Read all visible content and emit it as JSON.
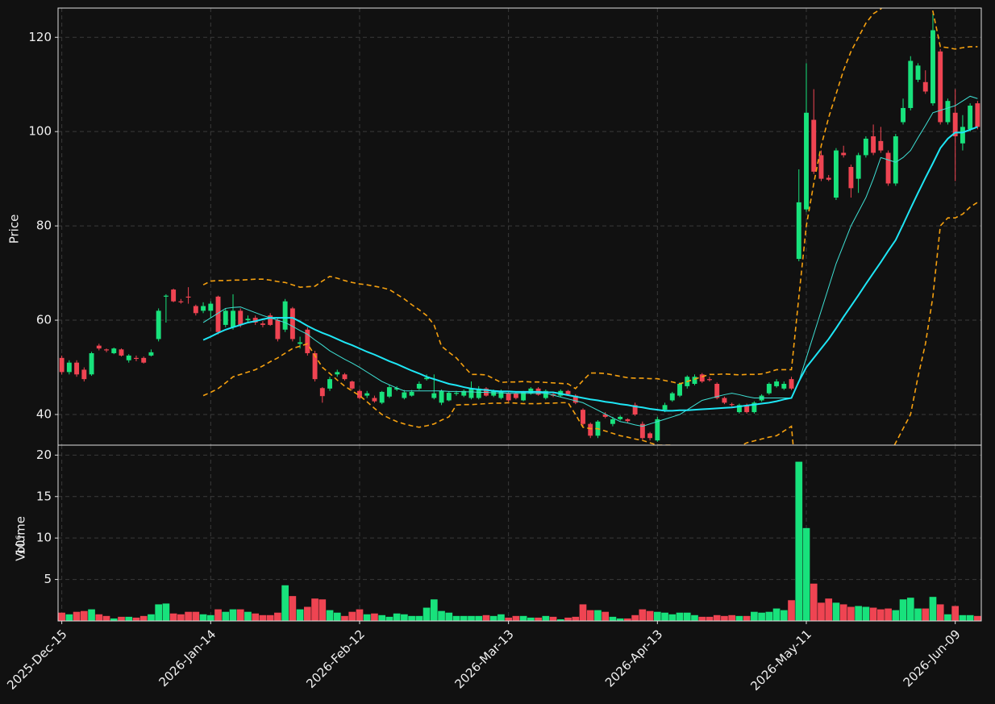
{
  "chart_data": {
    "type": "candlestick",
    "ylabel": "Price",
    "volume_ylabel": "Volume",
    "volume_unit": "10⁶",
    "up_color": "#18e27c",
    "down_color": "#ef4452",
    "grid": true,
    "ylim": [
      33.5,
      126.2
    ],
    "yticks": [
      40,
      60,
      80,
      100,
      120
    ],
    "volume_ylim": [
      0,
      21.2
    ],
    "volume_yticks": [
      5,
      10,
      15,
      20
    ],
    "categories": [
      "2025-Dec-15",
      null,
      null,
      null,
      null,
      null,
      null,
      null,
      null,
      null,
      null,
      null,
      null,
      null,
      null,
      null,
      null,
      null,
      null,
      null,
      "2026-Jan-14",
      null,
      null,
      null,
      null,
      null,
      null,
      null,
      null,
      null,
      null,
      null,
      null,
      null,
      null,
      null,
      null,
      null,
      null,
      null,
      "2026-Feb-12",
      null,
      null,
      null,
      null,
      null,
      null,
      null,
      null,
      null,
      null,
      null,
      null,
      null,
      null,
      null,
      null,
      null,
      null,
      null,
      "2026-Mar-13",
      null,
      null,
      null,
      null,
      null,
      null,
      null,
      null,
      null,
      null,
      null,
      null,
      null,
      null,
      null,
      null,
      null,
      null,
      null,
      "2026-Apr-13",
      null,
      null,
      null,
      null,
      null,
      null,
      null,
      null,
      null,
      null,
      null,
      null,
      null,
      null,
      null,
      null,
      null,
      null,
      null,
      "2026-May-11",
      null,
      null,
      null,
      null,
      null,
      null,
      null,
      null,
      null,
      null,
      null,
      null,
      null,
      null,
      null,
      null,
      null,
      null,
      null,
      "2026-Jun-09",
      null,
      null,
      null
    ],
    "open": [
      52,
      49,
      51,
      49.5,
      48.5,
      54.6,
      53.8,
      53,
      53.8,
      51.5,
      52,
      52,
      52.5,
      56,
      65,
      66.5,
      64,
      65,
      63,
      62,
      62,
      65,
      59,
      58.5,
      62,
      60,
      60.5,
      59.3,
      61,
      60,
      58,
      62.5,
      55,
      58,
      53,
      45.6,
      45.5,
      48.5,
      48.5,
      47,
      45,
      44,
      43.5,
      42.5,
      43.8,
      45.3,
      43.5,
      44,
      45.5,
      47.5,
      43.5,
      42.5,
      43,
      44.4,
      44,
      43.5,
      43.5,
      45.5,
      44,
      43.5,
      44.5,
      44.5,
      43,
      44.5,
      45.5,
      43.5,
      44.3,
      44,
      45,
      44,
      41,
      38,
      35.5,
      40,
      38,
      39,
      39,
      42,
      38,
      36,
      34.5,
      41,
      43,
      44,
      46,
      46.5,
      48.5,
      47.5,
      46.5,
      43.5,
      42.2,
      40.5,
      42,
      40.5,
      43,
      44.5,
      46,
      45.5,
      47.5,
      73,
      83.5,
      102.5,
      95,
      90.2,
      86,
      95.5,
      92.5,
      90,
      95,
      99,
      98,
      95.5,
      89,
      102,
      105,
      111,
      110.5,
      106,
      117,
      102,
      104,
      97.5,
      100.5,
      106
    ],
    "high": [
      52.5,
      51.5,
      51.5,
      50,
      53.3,
      55,
      54,
      54.2,
      54,
      52.8,
      52.5,
      52.3,
      53.8,
      62.5,
      65.5,
      66.7,
      64.5,
      67,
      63.3,
      63.8,
      64,
      65.2,
      62.5,
      65.5,
      62.5,
      61,
      61,
      59.8,
      61.5,
      60.5,
      64.5,
      62.8,
      56.5,
      58.5,
      53.5,
      45.8,
      48,
      49.5,
      48.8,
      47.2,
      45.3,
      45,
      44,
      45,
      46.3,
      46,
      45.2,
      45.2,
      47,
      48.5,
      48.5,
      45.3,
      44.9,
      45,
      45.3,
      47,
      46,
      45.8,
      45.3,
      45.3,
      44.8,
      44.8,
      45,
      45.8,
      45.8,
      45.3,
      44.6,
      45.3,
      45.2,
      44.3,
      41.3,
      38.3,
      38.8,
      40.5,
      39.5,
      39.8,
      39.2,
      42.5,
      38.5,
      36.3,
      39.5,
      42.5,
      44.8,
      46.8,
      48.3,
      48.5,
      48.8,
      48,
      46.8,
      43.8,
      42.5,
      42.3,
      42.3,
      42.8,
      44.3,
      46.8,
      47.5,
      47,
      48,
      92,
      114.5,
      109,
      96,
      90.8,
      96.5,
      97,
      93,
      95.5,
      99,
      101.5,
      101,
      96,
      99.5,
      107,
      116,
      114.5,
      113,
      125,
      117.5,
      107,
      109,
      103.5,
      106,
      106.5
    ],
    "low": [
      48.5,
      48.5,
      48,
      47,
      48.2,
      53.6,
      53.2,
      52.8,
      52.3,
      51,
      51.3,
      50.8,
      52.3,
      55.5,
      59.5,
      63.8,
      63.5,
      63.5,
      61,
      61.5,
      60.5,
      57,
      58.5,
      58,
      58.5,
      59.5,
      59,
      58.5,
      58.8,
      55.5,
      57.5,
      55.5,
      54,
      52.5,
      47,
      42.5,
      45,
      48,
      47.2,
      45.2,
      43.2,
      43.5,
      42.5,
      42.2,
      43.5,
      45,
      43.2,
      43.8,
      45.2,
      47.2,
      43.2,
      42,
      42.8,
      44,
      43.7,
      43.2,
      43.2,
      43.8,
      43.7,
      43.2,
      42.7,
      43.2,
      42.8,
      44.2,
      44,
      43.2,
      43.7,
      43.7,
      44,
      42.2,
      37.5,
      35,
      35,
      39.2,
      37.5,
      38.7,
      38.3,
      39.7,
      34.7,
      34.5,
      34.2,
      40.5,
      42.7,
      43.7,
      45.5,
      46.2,
      46.7,
      47,
      43.2,
      42.2,
      41.7,
      40.2,
      40.2,
      40.2,
      42.7,
      44.2,
      45.7,
      45.2,
      45.2,
      72.5,
      83,
      91,
      89.5,
      89.5,
      85.5,
      94.5,
      86,
      87,
      94.5,
      95,
      95.5,
      88.5,
      88.5,
      101.5,
      104.5,
      110.5,
      108,
      105.5,
      101.5,
      101.5,
      89.5,
      96,
      100,
      100.5
    ],
    "close": [
      49,
      51,
      48.5,
      47.5,
      53,
      54,
      53.6,
      54,
      52.5,
      52.5,
      51.8,
      51,
      53.2,
      62,
      65.2,
      64,
      63.8,
      64.8,
      61.5,
      63,
      63.5,
      57.5,
      62,
      62,
      59,
      60.3,
      59.5,
      59,
      59,
      56,
      64,
      56,
      55.3,
      53,
      47.5,
      43.9,
      47.5,
      49,
      47.5,
      45.5,
      43.5,
      44.5,
      42.8,
      44.8,
      45.8,
      45.6,
      44.7,
      44.8,
      46.5,
      47.8,
      44.5,
      45,
      44.6,
      44.6,
      45,
      45.5,
      45.5,
      44,
      45,
      45,
      43,
      43.5,
      44.7,
      45.5,
      44.2,
      45,
      44,
      45,
      44.3,
      42.5,
      38,
      35.5,
      38.5,
      39.5,
      39,
      39.5,
      38.6,
      40,
      35,
      35,
      39,
      42,
      44.5,
      46.5,
      48,
      48,
      47,
      47.3,
      43.5,
      42.5,
      42,
      42,
      40.5,
      42.5,
      44,
      46.5,
      47,
      46.5,
      45.5,
      85,
      104,
      91.5,
      90,
      89.8,
      96,
      95,
      88,
      95,
      98.5,
      95.5,
      96,
      89,
      99,
      105,
      115,
      114,
      108.5,
      121.5,
      102,
      106.5,
      99,
      101,
      105.5,
      101
    ],
    "volume": [
      1.0,
      0.8,
      1.1,
      1.2,
      1.4,
      0.8,
      0.6,
      0.3,
      0.5,
      0.5,
      0.4,
      0.6,
      0.8,
      2.0,
      2.1,
      0.9,
      0.8,
      1.1,
      1.1,
      0.8,
      0.7,
      1.4,
      1.1,
      1.4,
      1.4,
      1.1,
      0.9,
      0.7,
      0.7,
      1.0,
      4.3,
      3.0,
      1.4,
      1.7,
      2.7,
      2.6,
      1.3,
      1.0,
      0.6,
      1.1,
      1.4,
      0.8,
      0.9,
      0.7,
      0.5,
      0.9,
      0.8,
      0.6,
      0.6,
      1.6,
      2.6,
      1.2,
      1.0,
      0.6,
      0.6,
      0.6,
      0.6,
      0.7,
      0.6,
      0.8,
      0.4,
      0.6,
      0.6,
      0.4,
      0.4,
      0.6,
      0.5,
      0.2,
      0.4,
      0.5,
      2.0,
      1.3,
      1.3,
      1.1,
      0.5,
      0.3,
      0.3,
      0.7,
      1.4,
      1.2,
      1.1,
      1.0,
      0.8,
      1.0,
      1.0,
      0.7,
      0.5,
      0.5,
      0.7,
      0.6,
      0.7,
      0.6,
      0.6,
      1.1,
      1.0,
      1.1,
      1.5,
      1.3,
      2.5,
      19.2,
      11.2,
      4.5,
      2.2,
      2.7,
      2.2,
      2.0,
      1.7,
      1.8,
      1.7,
      1.6,
      1.4,
      1.5,
      1.3,
      2.6,
      2.8,
      1.5,
      1.5,
      2.9,
      2.0,
      0.8,
      1.8,
      0.7,
      0.7,
      0.6
    ],
    "overlays": [
      {
        "color": "#3ee0d4",
        "style": "thin",
        "values": [
          null,
          null,
          null,
          null,
          null,
          null,
          null,
          null,
          null,
          null,
          null,
          null,
          null,
          null,
          null,
          null,
          null,
          null,
          null,
          59.5,
          60.5,
          61.5,
          62.5,
          62.7,
          62.8,
          62.2,
          61.6,
          61,
          60.5,
          60,
          59.5,
          58.7,
          57.8,
          57,
          55.8,
          54.7,
          53.5,
          52.6,
          51.7,
          50.9,
          50,
          49,
          48,
          47,
          46.3,
          45.6,
          45,
          45,
          45,
          45,
          45,
          45,
          44.9,
          44.9,
          44.8,
          44.8,
          44.7,
          44.7,
          44.6,
          44.6,
          44.5,
          44.5,
          44.5,
          44.5,
          44.5,
          44.5,
          44.1,
          43.7,
          43.3,
          42.9,
          42.5,
          41.7,
          40.9,
          40.1,
          39.3,
          38.5,
          38.2,
          37.8,
          37.5,
          38,
          38.5,
          39,
          39.5,
          40,
          41,
          42,
          43,
          43.4,
          43.8,
          44.2,
          44.5,
          44.2,
          43.8,
          43.5,
          43.5,
          43.5,
          43.5,
          43.5,
          43.5,
          47,
          52,
          57,
          62,
          67,
          72,
          76,
          80,
          83,
          86,
          90,
          94.5,
          94,
          93.5,
          94.5,
          96,
          98.7,
          101.3,
          104,
          104.5,
          105,
          105.5,
          106.5,
          107.5,
          107
        ]
      },
      {
        "color": "#1ee6f5",
        "style": "bold",
        "values": [
          null,
          null,
          null,
          null,
          null,
          null,
          null,
          null,
          null,
          null,
          null,
          null,
          null,
          null,
          null,
          null,
          null,
          null,
          null,
          55.8,
          56.5,
          57.3,
          58,
          58.5,
          59,
          59.5,
          59.8,
          60.2,
          60.5,
          60.5,
          60.5,
          60.5,
          59.7,
          58.8,
          58,
          57.3,
          56.7,
          56,
          55.3,
          54.7,
          54,
          53.3,
          52.7,
          52,
          51.3,
          50.7,
          50,
          49.3,
          48.7,
          48,
          47.5,
          47,
          46.5,
          46.2,
          45.8,
          45.5,
          45.3,
          45.2,
          45,
          44.9,
          44.9,
          44.8,
          44.8,
          44.8,
          44.8,
          44.7,
          44.7,
          44.4,
          44.1,
          43.8,
          43.5,
          43.2,
          43,
          42.7,
          42.5,
          42.2,
          42,
          41.7,
          41.5,
          41.2,
          41,
          40.8,
          40.8,
          40.9,
          40.9,
          41,
          41.1,
          41.2,
          41.3,
          41.4,
          41.5,
          41.7,
          41.9,
          42.1,
          42.3,
          42.5,
          42.8,
          43.2,
          43.5,
          47,
          50,
          52,
          54,
          56,
          58.3,
          60.7,
          63,
          65.3,
          67.7,
          70,
          72.3,
          74.7,
          77,
          80.3,
          83.7,
          87,
          90.2,
          93.3,
          96.5,
          98.5,
          99.8,
          99.8,
          100.4,
          101
        ]
      },
      {
        "color": "#f5a00f",
        "style": "dashed",
        "values": [
          null,
          null,
          null,
          null,
          null,
          null,
          null,
          null,
          null,
          null,
          null,
          null,
          null,
          null,
          null,
          null,
          null,
          null,
          null,
          67.5,
          68.3,
          68.4,
          68.4,
          68.5,
          68.5,
          68.6,
          68.7,
          68.7,
          68.5,
          68.2,
          68,
          67.5,
          67,
          67.1,
          67.2,
          68.3,
          69.3,
          68.9,
          68.4,
          68,
          67.7,
          67.5,
          67.2,
          66.9,
          66.5,
          65.5,
          64.5,
          63.3,
          62.2,
          61,
          59,
          54.5,
          53.2,
          52,
          50.2,
          48.5,
          48.5,
          48.4,
          47.6,
          46.8,
          46.9,
          46.9,
          47,
          46.9,
          46.9,
          46.8,
          46.7,
          46.6,
          46.5,
          45.5,
          47.2,
          48.8,
          48.8,
          48.7,
          48.4,
          48.1,
          47.8,
          47.7,
          47.7,
          47.6,
          47.6,
          47.2,
          46.9,
          46.5,
          47,
          47.5,
          48,
          48.5,
          48.5,
          48.6,
          48.5,
          48.4,
          48.5,
          48.5,
          48.6,
          49,
          49.5,
          49.5,
          49.5,
          65,
          80,
          89,
          97,
          103,
          108,
          113,
          117,
          120,
          123,
          125,
          126,
          128,
          130,
          131,
          132,
          131,
          129,
          125.5,
          118,
          117.8,
          117.5,
          117.8,
          118,
          118
        ]
      },
      {
        "color": "#f5a00f",
        "style": "dashed",
        "values": [
          null,
          null,
          null,
          null,
          null,
          null,
          null,
          null,
          null,
          null,
          null,
          null,
          null,
          null,
          null,
          null,
          null,
          null,
          null,
          44,
          44.7,
          45.5,
          46.7,
          48,
          48.5,
          49,
          49.5,
          50.3,
          51.2,
          52,
          53,
          54,
          54.5,
          55,
          52.5,
          50,
          48.7,
          47.3,
          46,
          45,
          44,
          42.7,
          41.3,
          40,
          39.2,
          38.5,
          38,
          37.6,
          37.3,
          37.6,
          38,
          38.8,
          39.5,
          42,
          42.1,
          42.1,
          42.2,
          42.3,
          42.4,
          42.4,
          42.5,
          42.4,
          42.3,
          42.3,
          42.3,
          42.4,
          42.4,
          42.5,
          42.5,
          40,
          37.3,
          37,
          37,
          36.5,
          36,
          35.5,
          35.2,
          34.8,
          34.5,
          34,
          33.5,
          33.5,
          33.5,
          33.2,
          33,
          32.7,
          32.3,
          32,
          32.2,
          32.3,
          32.5,
          33.2,
          34,
          34.4,
          34.8,
          35.2,
          35.5,
          36.5,
          37.5,
          20,
          10,
          5,
          2,
          0,
          -1,
          0,
          3,
          8,
          15,
          22,
          28,
          31,
          34,
          37,
          40,
          48,
          55,
          65,
          80,
          81.7,
          81.7,
          82.5,
          84,
          85
        ]
      }
    ]
  }
}
